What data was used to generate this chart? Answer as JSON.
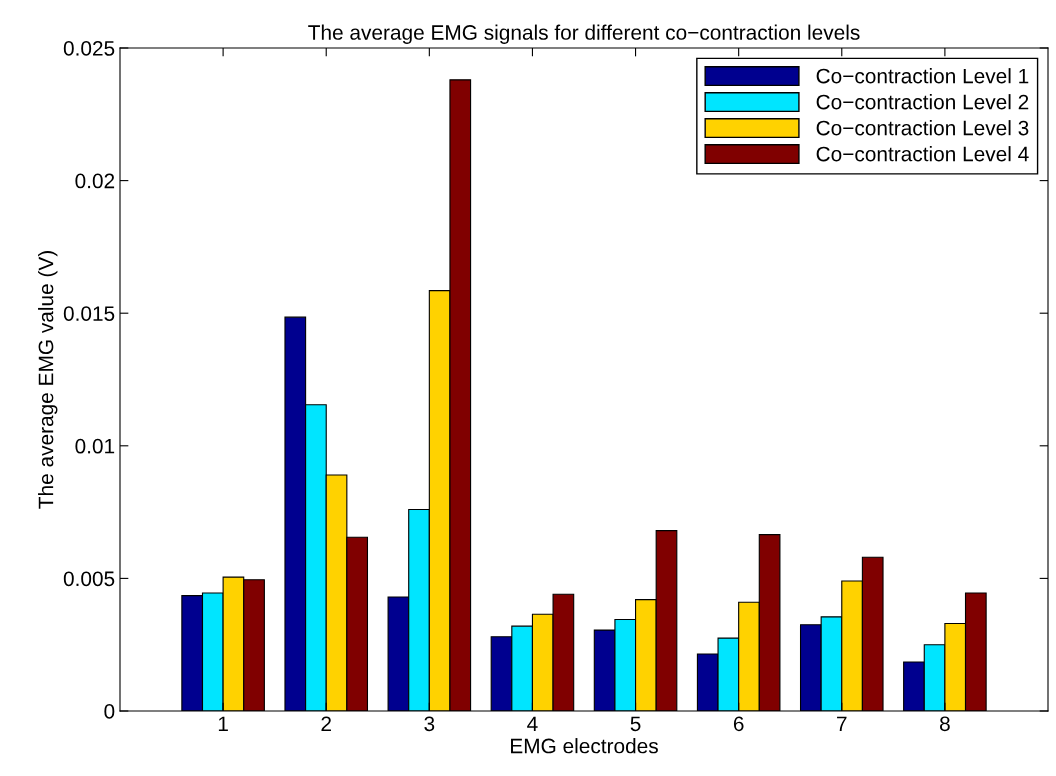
{
  "chart_data": {
    "type": "bar",
    "title": "The average EMG signals for different co−contraction levels",
    "xlabel": "EMG electrodes",
    "ylabel": "The average EMG value (V)",
    "categories": [
      "1",
      "2",
      "3",
      "4",
      "5",
      "6",
      "7",
      "8"
    ],
    "series": [
      {
        "name": "Co−contraction Level 1",
        "color": "#00008f",
        "values": [
          0.00435,
          0.01485,
          0.0043,
          0.0028,
          0.00305,
          0.00215,
          0.00325,
          0.00185
        ]
      },
      {
        "name": "Co−contraction Level 2",
        "color": "#00e5ff",
        "values": [
          0.00445,
          0.01155,
          0.0076,
          0.0032,
          0.00345,
          0.00275,
          0.00355,
          0.0025
        ]
      },
      {
        "name": "Co−contraction Level 3",
        "color": "#ffd200",
        "values": [
          0.00505,
          0.0089,
          0.01585,
          0.00365,
          0.0042,
          0.0041,
          0.0049,
          0.0033
        ]
      },
      {
        "name": "Co−contraction Level 4",
        "color": "#800000",
        "values": [
          0.00495,
          0.00655,
          0.0238,
          0.0044,
          0.0068,
          0.00665,
          0.0058,
          0.00445
        ]
      }
    ],
    "ylim": [
      0,
      0.025
    ],
    "yticks": [
      0,
      0.005,
      0.01,
      0.015,
      0.02,
      0.025
    ],
    "grid": false,
    "legend": "top right"
  }
}
